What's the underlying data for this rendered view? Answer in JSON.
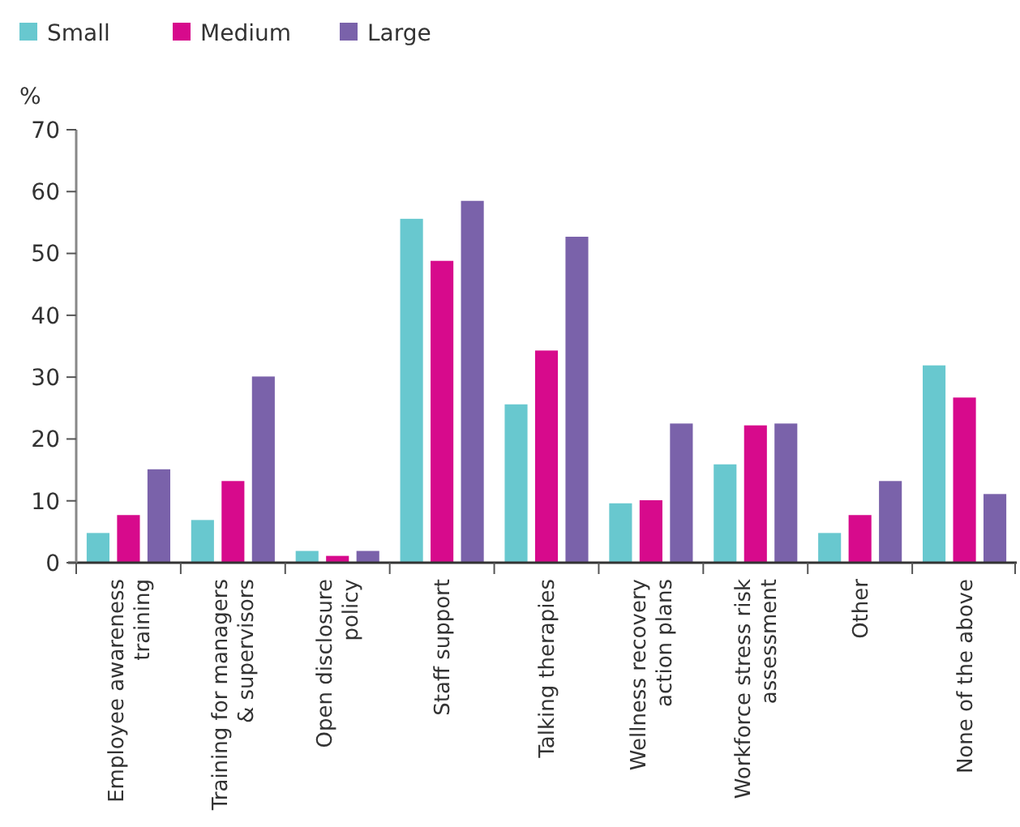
{
  "chart_data": {
    "type": "bar",
    "ylabel": "%",
    "categories": [
      "Employee awareness training",
      "Training for managers & supervisors",
      "Open disclosure policy",
      "Staff support",
      "Talking therapies",
      "Wellness recovery action plans",
      "Workforce stress risk assessment",
      "Other",
      "None of the above"
    ],
    "series": [
      {
        "name": "Small",
        "color": "#68c8cf",
        "values": [
          4.8,
          6.9,
          1.9,
          55.6,
          25.6,
          9.6,
          15.9,
          4.8,
          31.9
        ]
      },
      {
        "name": "Medium",
        "color": "#d70a8c",
        "values": [
          7.7,
          13.2,
          1.1,
          48.8,
          34.3,
          10.1,
          22.2,
          7.7,
          26.7
        ]
      },
      {
        "name": "Large",
        "color": "#7a62aa",
        "values": [
          15.1,
          30.1,
          1.9,
          58.5,
          52.7,
          22.5,
          22.5,
          13.2,
          11.1
        ]
      }
    ],
    "ylim": [
      0,
      70
    ],
    "yticks": [
      0,
      10,
      20,
      30,
      40,
      50,
      60,
      70
    ],
    "grid": false,
    "legend": "top left"
  }
}
